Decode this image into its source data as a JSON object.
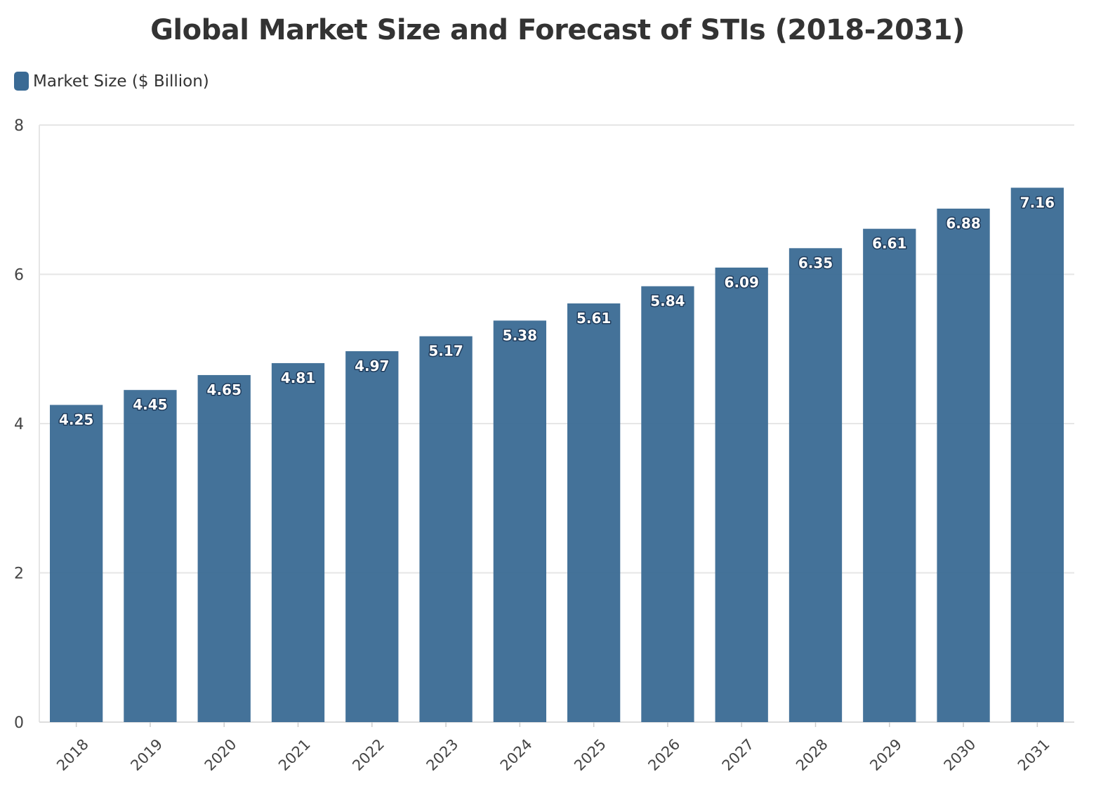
{
  "chart_data": {
    "type": "bar",
    "title": "Global Market Size and Forecast of STIs (2018-2031)",
    "xlabel": "",
    "ylabel": "",
    "categories": [
      "2018",
      "2019",
      "2020",
      "2021",
      "2022",
      "2023",
      "2024",
      "2025",
      "2026",
      "2027",
      "2028",
      "2029",
      "2030",
      "2031"
    ],
    "series": [
      {
        "name": "Market Size ($ Billion)",
        "values": [
          4.25,
          4.45,
          4.65,
          4.81,
          4.97,
          5.17,
          5.38,
          5.61,
          5.84,
          6.09,
          6.35,
          6.61,
          6.88,
          7.16
        ],
        "color": "#3a6a94"
      }
    ],
    "ylim": [
      0,
      8
    ],
    "yticks": [
      0,
      2,
      4,
      6,
      8
    ],
    "grid": true,
    "legend": "top-left",
    "data_labels": true
  }
}
